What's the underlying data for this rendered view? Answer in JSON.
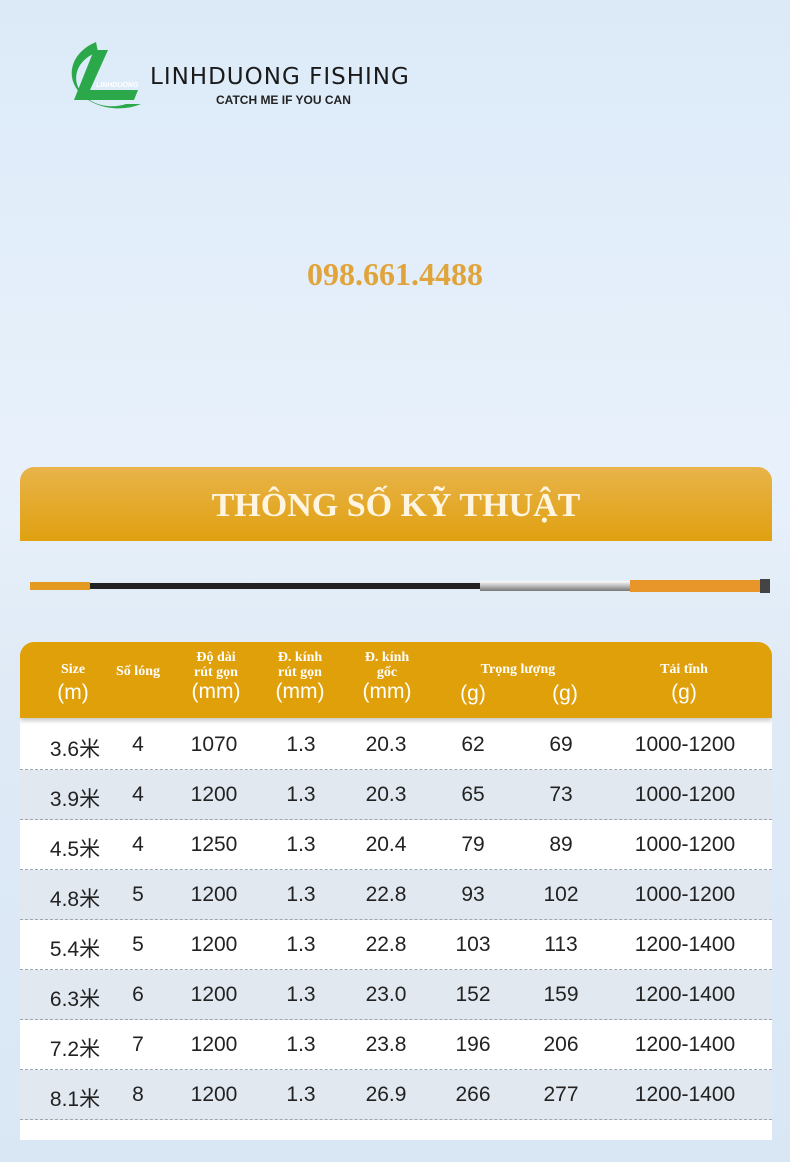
{
  "brand": {
    "name": "LINHDUONG FISHING",
    "tagline": "CATCH ME IF YOU CAN",
    "logo_text": "LINHDUONG",
    "logo_color": "#2aa84a"
  },
  "phone": "098.661.4488",
  "banner": {
    "title": "THÔNG SỐ KỸ THUẬT",
    "color": "#e0a010"
  },
  "table": {
    "headers": [
      {
        "title": "Size",
        "unit": "(m)"
      },
      {
        "title": "Số lóng",
        "unit": ""
      },
      {
        "title": "Độ dài rút gọn",
        "unit": "(mm)"
      },
      {
        "title": "Đ. kính rút gọn",
        "unit": "(mm)"
      },
      {
        "title": "Đ. kính gốc",
        "unit": "(mm)"
      },
      {
        "title": "Trọng lượng",
        "unit": "(g)",
        "unit2": "(g)"
      },
      {
        "title": "Tải tĩnh",
        "unit": "(g)"
      }
    ],
    "rows": [
      [
        "3.6米",
        "4",
        "1070",
        "1.3",
        "20.3",
        "62",
        "69",
        "1000-1200"
      ],
      [
        "3.9米",
        "4",
        "1200",
        "1.3",
        "20.3",
        "65",
        "73",
        "1000-1200"
      ],
      [
        "4.5米",
        "4",
        "1250",
        "1.3",
        "20.4",
        "79",
        "89",
        "1000-1200"
      ],
      [
        "4.8米",
        "5",
        "1200",
        "1.3",
        "22.8",
        "93",
        "102",
        "1000-1200"
      ],
      [
        "5.4米",
        "5",
        "1200",
        "1.3",
        "22.8",
        "103",
        "113",
        "1200-1400"
      ],
      [
        "6.3米",
        "6",
        "1200",
        "1.3",
        "23.0",
        "152",
        "159",
        "1200-1400"
      ],
      [
        "7.2米",
        "7",
        "1200",
        "1.3",
        "23.8",
        "196",
        "206",
        "1200-1400"
      ],
      [
        "8.1米",
        "8",
        "1200",
        "1.3",
        "26.9",
        "266",
        "277",
        "1200-1400"
      ]
    ]
  }
}
